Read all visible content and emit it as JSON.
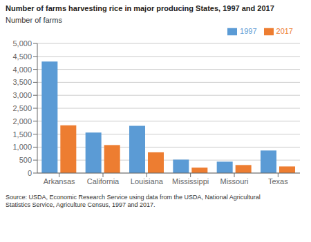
{
  "chart_data": {
    "type": "bar",
    "title": "Number of farms harvesting rice in major producing States, 1997 and 2017",
    "y_label": "Number of farms",
    "annotations": [
      "Source: USDA, Economic Research Service using data from the USDA, National Agricultural\nStatistics Service, Agriculture Census, 1997 and 2017."
    ],
    "categories": [
      "Arkansas",
      "California",
      "Louisiana",
      "Mississippi",
      "Missouri",
      "Texas"
    ],
    "series": [
      {
        "name": "1997",
        "color": "#5B9BD5",
        "values": [
          4300,
          1560,
          1820,
          520,
          440,
          870
        ]
      },
      {
        "name": "2017",
        "color": "#ED7D31",
        "values": [
          1840,
          1080,
          800,
          210,
          310,
          255
        ]
      }
    ],
    "ylim": [
      0,
      5000
    ],
    "yticks": [
      0,
      500,
      {
        "value": 1000,
        "label": "1,000"
      },
      {
        "value": 1500,
        "label": "1,500"
      },
      {
        "value": 2000,
        "label": "2,000"
      },
      {
        "value": 2500,
        "label": "2,500"
      },
      {
        "value": 3000,
        "label": "3,000"
      },
      {
        "value": 3500,
        "label": "3,500"
      },
      {
        "value": 4000,
        "label": "4,000"
      },
      {
        "value": 4500,
        "label": "4,500"
      },
      {
        "value": 5000,
        "label": "5,000"
      }
    ],
    "grid": true,
    "legend": "upper right"
  }
}
